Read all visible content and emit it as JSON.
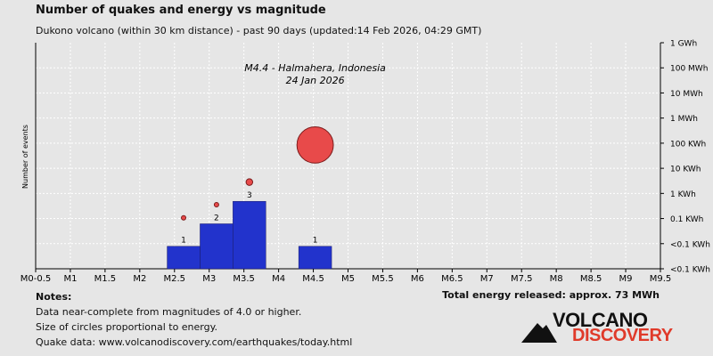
{
  "header": {
    "title": "Number of quakes and energy vs magnitude",
    "subtitle": "Dukono volcano (within 30 km distance) - past 90 days (updated:14 Feb 2026, 04:29 GMT)"
  },
  "notes": {
    "heading": "Notes:",
    "lines": [
      "Data near-complete from magnitudes of 4.0 or higher.",
      "Size of circles proportional to energy.",
      "Quake data: www.volcanodiscovery.com/earthquakes/today.html"
    ]
  },
  "total_energy": "Total energy released: approx. 73 MWh",
  "logo": {
    "word1": "VOLCANO",
    "word2": "DISCOVERY"
  },
  "colors": {
    "bar": "#2233cc",
    "bubble": "#e84a4a",
    "bubble_stroke": "#7a1a1a",
    "background": "#e6e6e6",
    "grid": "#ffffff",
    "logo_red": "#e03a2a"
  },
  "chart_data": {
    "type": "bar",
    "ylabel": "Number of events",
    "x_tick_labels": [
      "M0-0.5",
      "M1",
      "M1.5",
      "M2",
      "M2.5",
      "M3",
      "M3.5",
      "M4",
      "M4.5",
      "M5",
      "M5.5",
      "M6",
      "M6.5",
      "M7",
      "M7.5",
      "M8",
      "M8.5",
      "M9",
      "M9.5"
    ],
    "xlim": [
      0,
      9.5
    ],
    "bars": [
      {
        "from": 2.0,
        "to": 2.5,
        "count": 1
      },
      {
        "from": 2.5,
        "to": 3.0,
        "count": 2
      },
      {
        "from": 3.0,
        "to": 3.5,
        "count": 3
      },
      {
        "from": 4.0,
        "to": 4.5,
        "count": 1
      }
    ],
    "ylim_count": [
      0,
      4
    ],
    "energy_axis_labels": [
      "1 GWh",
      "100 MWh",
      "10 MWh",
      "1 MWh",
      "100 KWh",
      "10 KWh",
      "1 KWh",
      "0.1 KWh",
      "<0.1 KWh",
      "<0.1 KWh"
    ],
    "energy_bubbles": [
      {
        "magnitude": 2.25,
        "log_wh": 2.03
      },
      {
        "magnitude": 2.75,
        "log_wh": 2.55
      },
      {
        "magnitude": 3.25,
        "log_wh": 3.45
      },
      {
        "magnitude": 4.25,
        "log_wh": 4.93
      }
    ],
    "annotation": {
      "line1": "M4.4 - Halmahera, Indonesia",
      "line2": "24 Jan 2026"
    }
  }
}
